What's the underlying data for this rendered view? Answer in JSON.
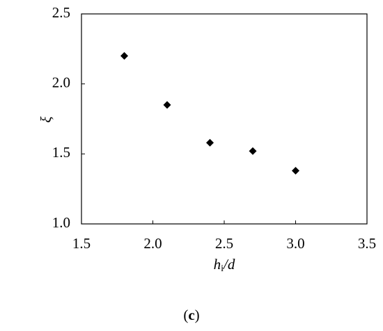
{
  "chart_data": {
    "type": "scatter",
    "xlabel": "hi/d",
    "ylabel": "ξ",
    "caption": "(c)",
    "x": [
      1.8,
      2.1,
      2.4,
      2.7,
      3.0
    ],
    "values": [
      2.2,
      1.85,
      1.58,
      1.52,
      1.38
    ],
    "color": "#000000",
    "xlim": [
      1.5,
      3.5
    ],
    "xticks": [
      1.5,
      {
        "value": 2,
        "label": "2.0"
      },
      2.5,
      {
        "value": 3,
        "label": "3.0"
      },
      3.5
    ],
    "ylim": [
      1,
      2.5
    ],
    "yticks": [
      {
        "value": 1,
        "label": "1.0"
      },
      1.5,
      {
        "value": 2,
        "label": "2.0"
      },
      2.5
    ]
  }
}
